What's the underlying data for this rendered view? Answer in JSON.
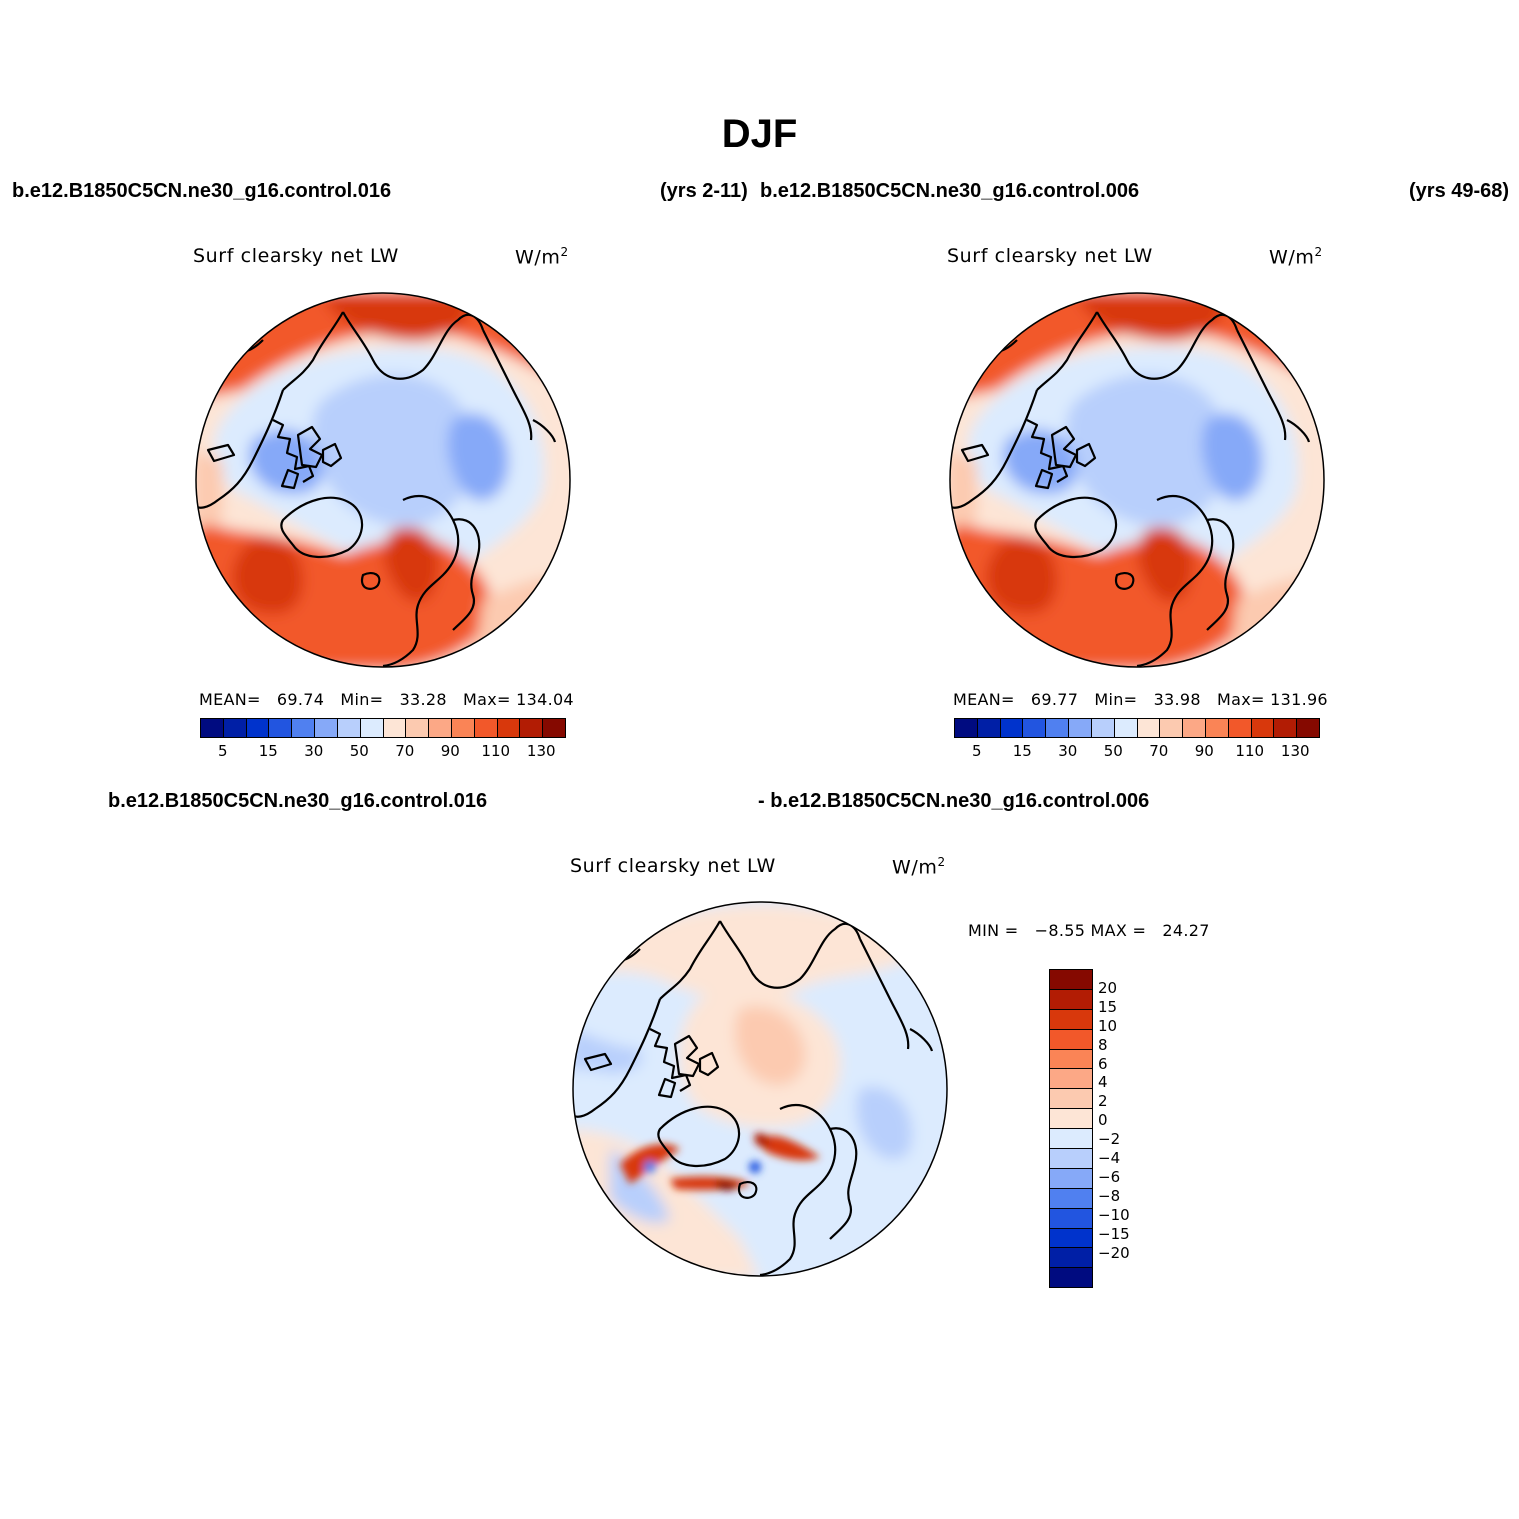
{
  "figure": {
    "title": "DJF",
    "case_a": "b.e12.B1850C5CN.ne30_g16.control.016",
    "case_a_years": "(yrs 2-11)",
    "case_b": "b.e12.B1850C5CN.ne30_g16.control.006",
    "case_b_years": "(yrs 49-68)",
    "diff_left": "b.e12.B1850C5CN.ne30_g16.control.016",
    "diff_right": "- b.e12.B1850C5CN.ne30_g16.control.006"
  },
  "panels": [
    {
      "variable": "Surf clearsky net LW",
      "units_base": "W/m",
      "units_exp": "2",
      "mean_label": "MEAN=",
      "mean": "69.74",
      "min_label": "Min=",
      "min": "33.28",
      "max_label": "Max=",
      "max": "134.04"
    },
    {
      "variable": "Surf clearsky net LW",
      "units_base": "W/m",
      "units_exp": "2",
      "mean_label": "MEAN=",
      "mean": "69.77",
      "min_label": "Min=",
      "min": "33.98",
      "max_label": "Max=",
      "max": "131.96"
    },
    {
      "variable": "Surf clearsky net LW",
      "units_base": "W/m",
      "units_exp": "2",
      "minmax_text": "MIN =   −8.55 MAX =   24.27"
    }
  ],
  "colorbar_abs": {
    "colors": [
      "#000b80",
      "#001fa6",
      "#0033cc",
      "#2255e0",
      "#5080f0",
      "#86a9f8",
      "#b8cffc",
      "#dcebfe",
      "#fde5d6",
      "#fccab0",
      "#fca886",
      "#fa8456",
      "#f2582a",
      "#d8380c",
      "#b21c04",
      "#850900"
    ],
    "ticks": [
      "5",
      "15",
      "30",
      "50",
      "70",
      "90",
      "110",
      "130"
    ]
  },
  "colorbar_diff": {
    "colors": [
      "#850900",
      "#b21c04",
      "#d8380c",
      "#f2582a",
      "#fa8456",
      "#fca886",
      "#fccab0",
      "#fde5d6",
      "#dcebfe",
      "#b8cffc",
      "#86a9f8",
      "#5080f0",
      "#2255e0",
      "#0033cc",
      "#001fa6",
      "#000b80"
    ],
    "labels": [
      "20",
      "15",
      "10",
      "8",
      "6",
      "4",
      "2",
      "0",
      "−2",
      "−4",
      "−6",
      "−8",
      "−10",
      "−15",
      "−20"
    ]
  }
}
